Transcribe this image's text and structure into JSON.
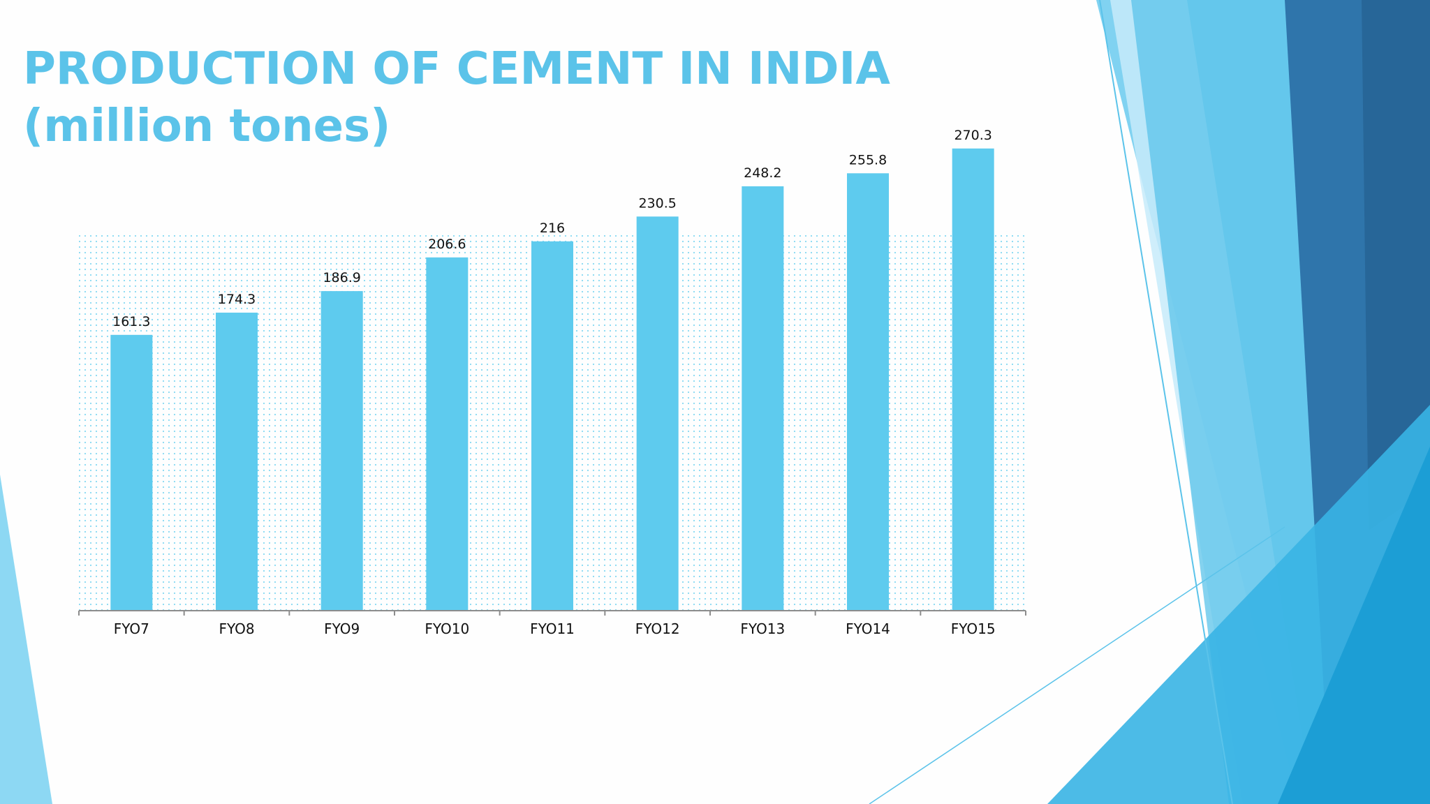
{
  "slide": {
    "title": "PRODUCTION OF CEMENT IN INDIA (million tones)"
  },
  "colors": {
    "title": "#5bc3e9",
    "bar": "#5ecbee",
    "plot_dots": "#5ecbee",
    "axis": "#8c8c8c",
    "theme_light": "#7ed3f1",
    "theme_mid": "#3cb6e6",
    "theme_dark": "#2a6ea3"
  },
  "chart_data": {
    "type": "bar",
    "title": "",
    "xlabel": "",
    "ylabel": "",
    "categories": [
      "FYO7",
      "FYO8",
      "FYO9",
      "FYO10",
      "FYO11",
      "FYO12",
      "FYO13",
      "FYO14",
      "FYO15"
    ],
    "values": [
      161.3,
      174.3,
      186.9,
      206.6,
      216,
      230.5,
      248.2,
      255.8,
      270.3
    ],
    "data_labels": [
      "161.3",
      "174.3",
      "186.9",
      "206.6",
      "216",
      "230.5",
      "248.2",
      "255.8",
      "270.3"
    ],
    "ylim": [
      0,
      300
    ],
    "grid": false,
    "legend": "none"
  }
}
